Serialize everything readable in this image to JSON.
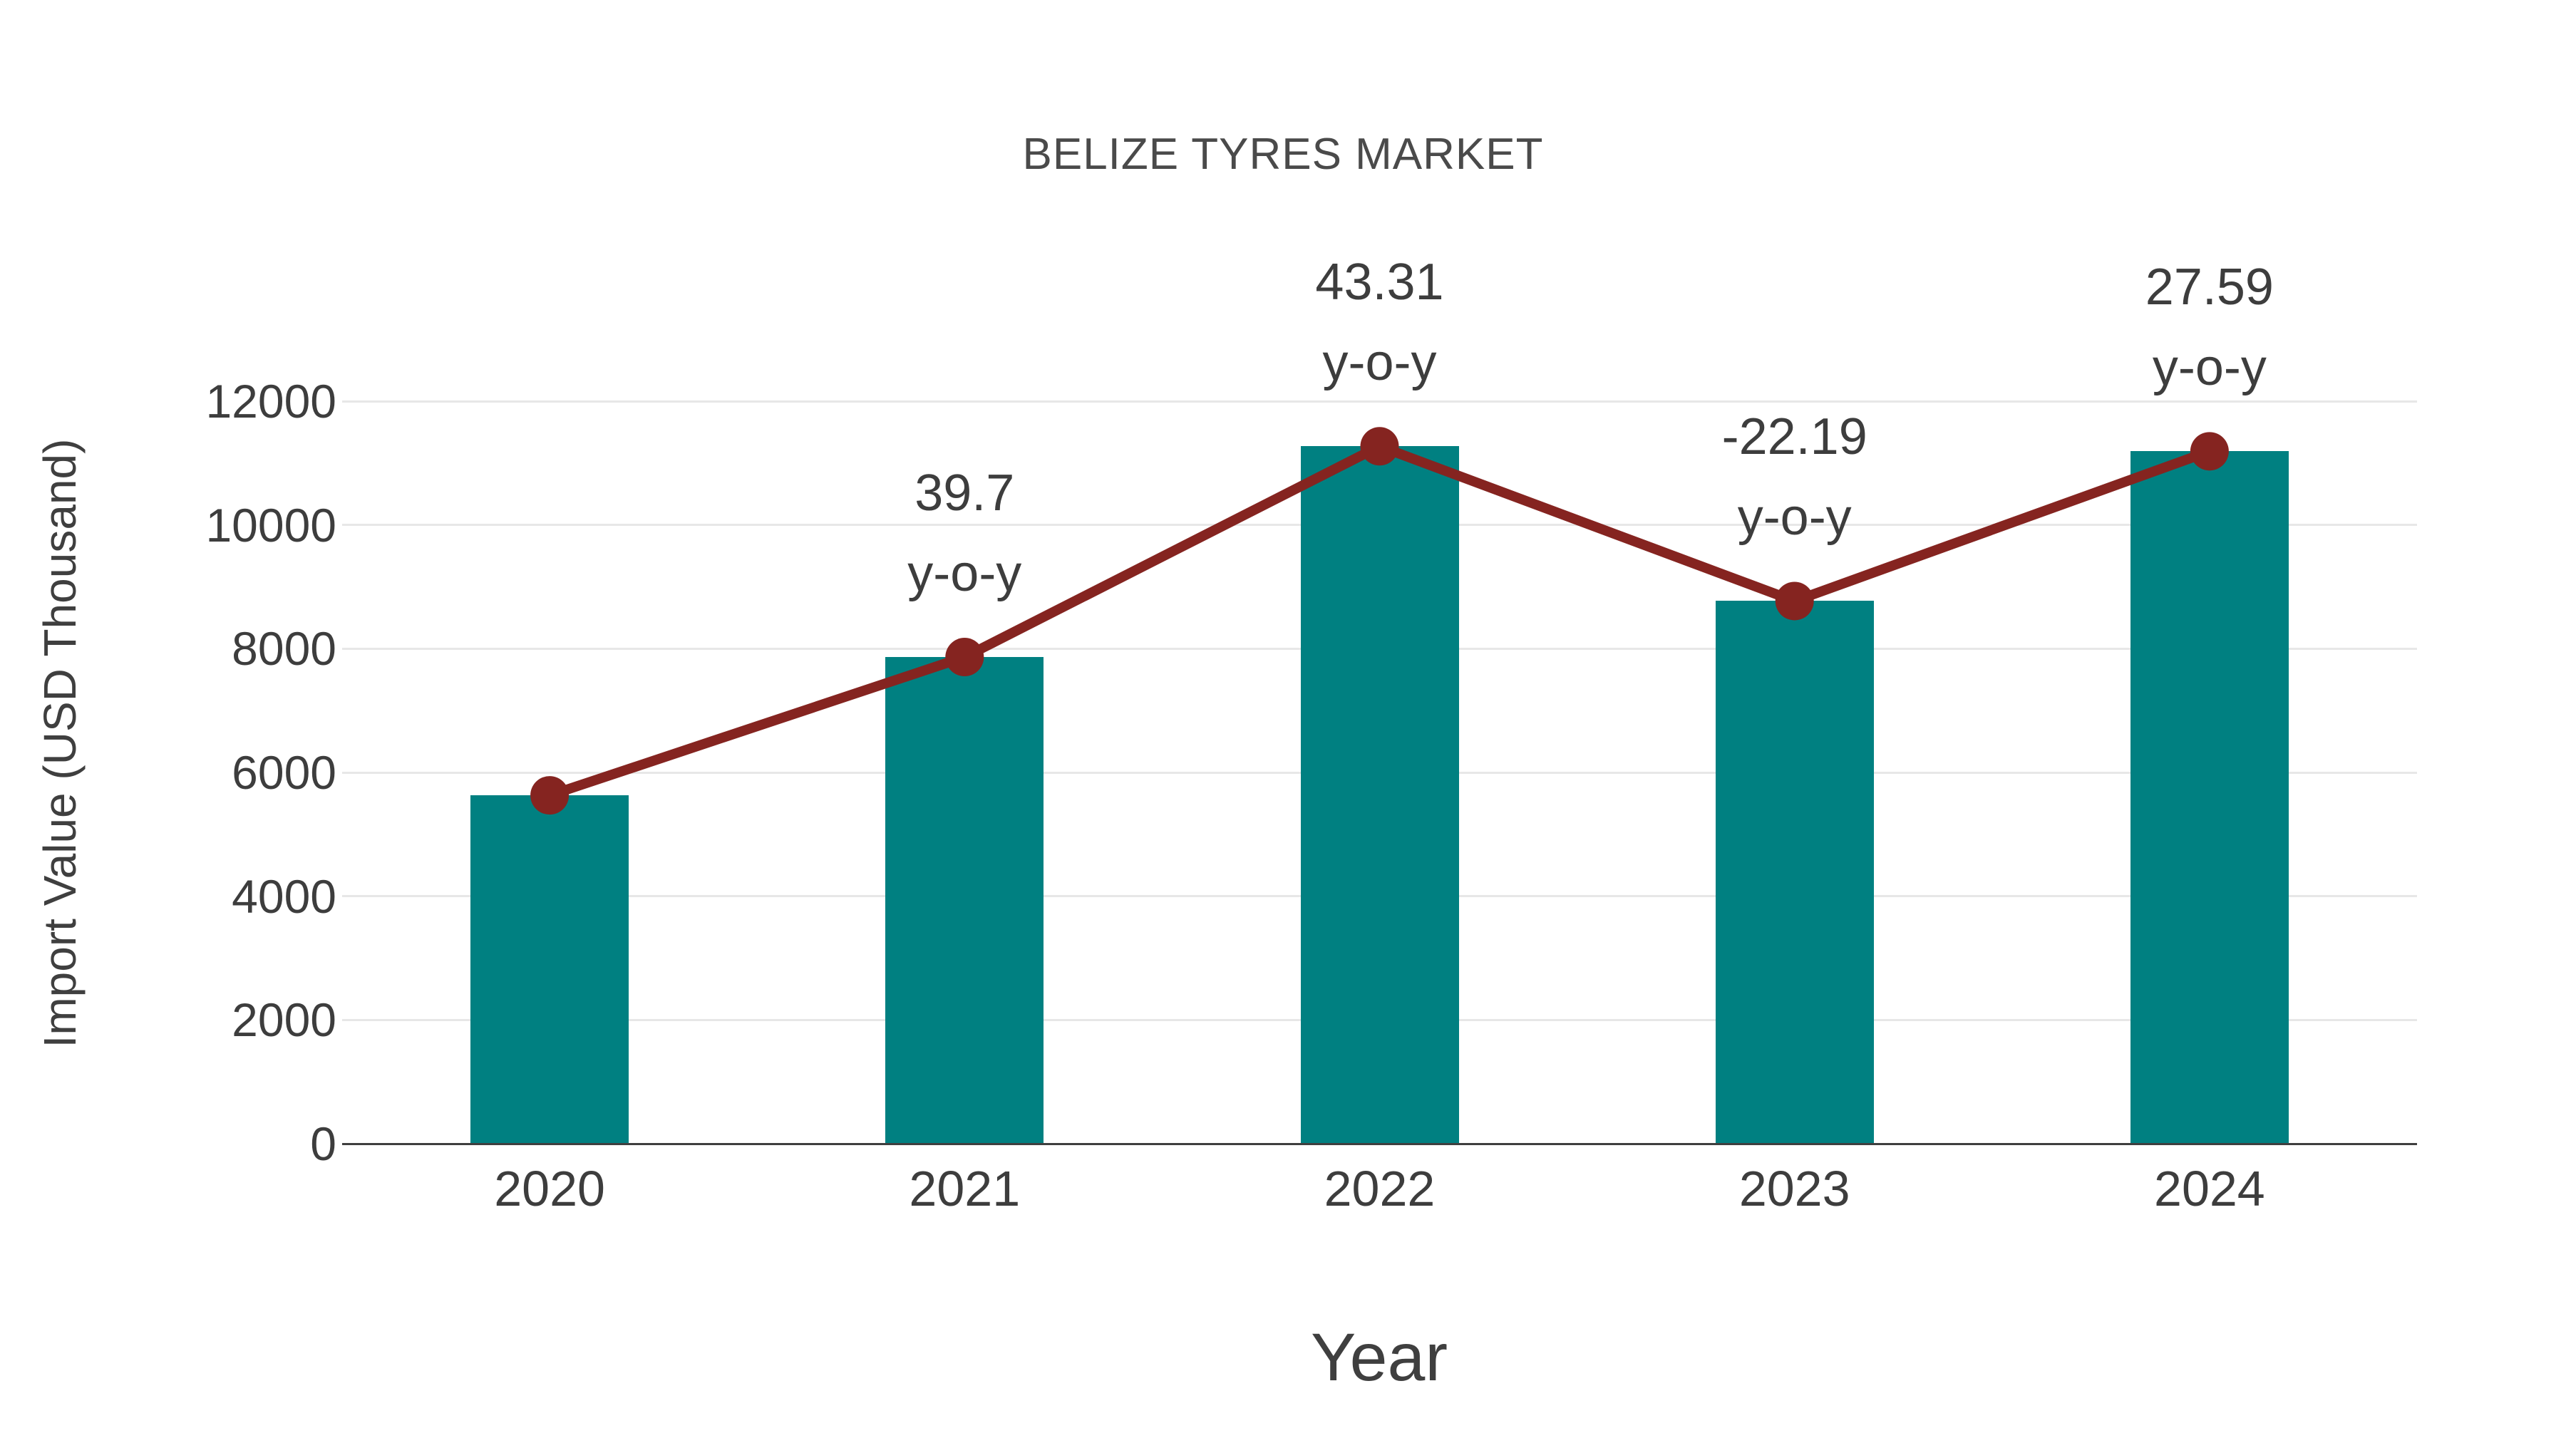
{
  "chart_data": {
    "type": "bar",
    "title": "BELIZE TYRES MARKET",
    "xlabel": "Year",
    "ylabel": "Import Value (USD Thousand)",
    "categories": [
      "2020",
      "2021",
      "2022",
      "2023",
      "2024"
    ],
    "series": [
      {
        "name": "Import Value",
        "type": "bar",
        "color": "#008081",
        "values": [
          5630,
          7865,
          11271,
          8770,
          11190
        ]
      },
      {
        "name": "y-o-y growth",
        "type": "line",
        "color": "#852420",
        "values": [
          5630,
          7865,
          11271,
          8770,
          11190
        ],
        "point_labels": [
          null,
          "39.7",
          "43.31",
          "-22.19",
          "27.59"
        ],
        "label_second_line": "y-o-y"
      }
    ],
    "yticks": [
      "0",
      "2000",
      "4000",
      "6000",
      "8000",
      "10000",
      "12000"
    ],
    "ytick_values": [
      0,
      2000,
      4000,
      6000,
      8000,
      10000,
      12000
    ],
    "ylim": [
      0,
      12000
    ],
    "grid": "horizontal",
    "legend": "none",
    "colors": {
      "bar": "#008081",
      "line": "#852420",
      "gridline": "#e7e7e7",
      "axis_line": "#3f3f3f",
      "tick_text": "#3d3d3d",
      "title_text": "#4a4a4a",
      "background": "#ffffff"
    }
  }
}
